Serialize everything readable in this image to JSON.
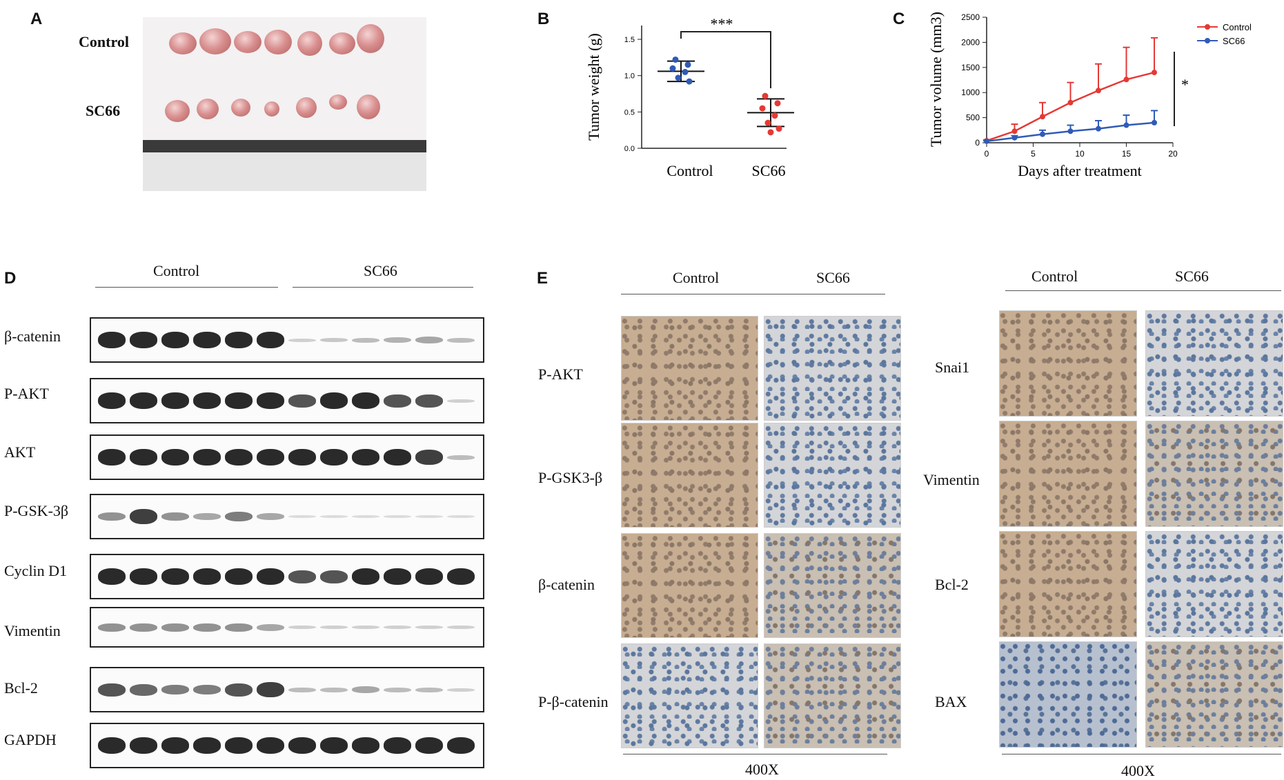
{
  "panels": {
    "A": {
      "letter": "A",
      "row_labels": [
        "Control",
        "SC66"
      ]
    },
    "B": {
      "letter": "B"
    },
    "C": {
      "letter": "C"
    },
    "D": {
      "letter": "D",
      "group_labels": [
        "Control",
        "SC66"
      ],
      "blots": [
        "β-catenin",
        "P-AKT",
        "AKT",
        "P-GSK-3β",
        "Cyclin D1",
        "Vimentin",
        "Bcl-2",
        "GAPDH"
      ]
    },
    "E": {
      "letter": "E",
      "left": {
        "group_labels": [
          "Control",
          "SC66"
        ],
        "rows": [
          "P-AKT",
          "P-GSK3-β",
          "β-catenin",
          "P-β-catenin"
        ],
        "magnification": "400X"
      },
      "right": {
        "group_labels": [
          "Control",
          "SC66"
        ],
        "rows": [
          "Snai1",
          "Vimentin",
          "Bcl-2",
          "BAX"
        ],
        "magnification": "400X"
      }
    }
  },
  "chart_data": [
    {
      "type": "scatter",
      "panel": "B",
      "ylabel": "Tumor weight (g)",
      "categories": [
        "Control",
        "SC66"
      ],
      "ylim": [
        0,
        1.5
      ],
      "yticks": [
        "0.0",
        "0.5",
        "1.0",
        "1.5"
      ],
      "series": [
        {
          "name": "Control",
          "color": "#2f5bb7",
          "values": [
            1.22,
            1.15,
            1.1,
            1.05,
            0.97,
            0.92
          ],
          "mean": 1.06,
          "sd": 0.14
        },
        {
          "name": "SC66",
          "color": "#e53935",
          "values": [
            0.72,
            0.62,
            0.55,
            0.45,
            0.35,
            0.27,
            0.22
          ],
          "mean": 0.49,
          "sd": 0.19
        }
      ],
      "significance": "***"
    },
    {
      "type": "line",
      "panel": "C",
      "xlabel": "Days after treatment",
      "ylabel": "Tumor volume (mm3)",
      "xlim": [
        0,
        20
      ],
      "ylim": [
        0,
        2500
      ],
      "xticks": [
        "0",
        "5",
        "10",
        "15",
        "20"
      ],
      "yticks": [
        "0",
        "500",
        "1000",
        "1500",
        "2000",
        "2500"
      ],
      "x": [
        0,
        3,
        6,
        9,
        12,
        15,
        18
      ],
      "series": [
        {
          "name": "Control",
          "color": "#e53935",
          "values": [
            40,
            230,
            520,
            800,
            1040,
            1260,
            1400
          ],
          "error": [
            20,
            140,
            280,
            400,
            530,
            640,
            690
          ]
        },
        {
          "name": "SC66",
          "color": "#2f5bb7",
          "values": [
            30,
            100,
            170,
            230,
            280,
            350,
            400
          ],
          "error": [
            10,
            40,
            80,
            120,
            160,
            200,
            240
          ]
        }
      ],
      "significance": "*"
    }
  ]
}
